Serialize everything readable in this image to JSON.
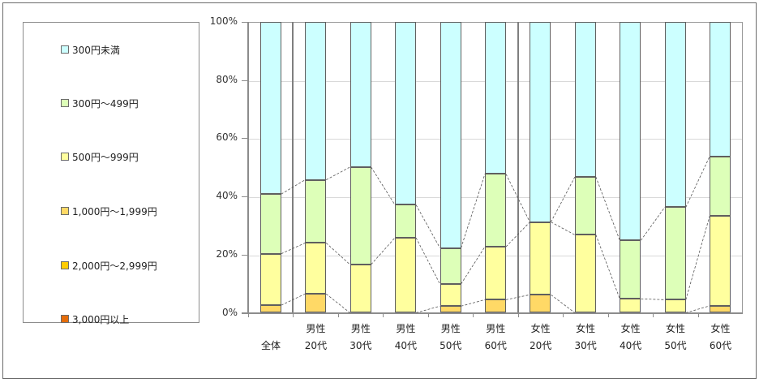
{
  "legend": {
    "items": [
      {
        "label": "300円未満",
        "color": "#CCFFFF"
      },
      {
        "label": "300円～499円",
        "color": "#DDFFB8"
      },
      {
        "label": "500円～999円",
        "color": "#FFFF9E"
      },
      {
        "label": "1,000円～1,999円",
        "color": "#FFD966"
      },
      {
        "label": "2,000円～2,999円",
        "color": "#FFCC00"
      },
      {
        "label": "3,000円以上",
        "color": "#E46C0A"
      }
    ]
  },
  "y_axis": {
    "ticks": [
      "100%",
      "80%",
      "60%",
      "40%",
      "20%",
      "0%"
    ]
  },
  "x_axis": {
    "categories": [
      {
        "line1": "",
        "line2": "全体"
      },
      {
        "line1": "男性",
        "line2": "20代"
      },
      {
        "line1": "男性",
        "line2": "30代"
      },
      {
        "line1": "男性",
        "line2": "40代"
      },
      {
        "line1": "男性",
        "line2": "50代"
      },
      {
        "line1": "男性",
        "line2": "60代"
      },
      {
        "line1": "女性",
        "line2": "20代"
      },
      {
        "line1": "女性",
        "line2": "30代"
      },
      {
        "line1": "女性",
        "line2": "40代"
      },
      {
        "line1": "女性",
        "line2": "50代"
      },
      {
        "line1": "女性",
        "line2": "60代"
      }
    ]
  },
  "chart_data": {
    "type": "bar",
    "stacked": "percent",
    "title": "",
    "xlabel": "",
    "ylabel": "",
    "ylim": [
      0,
      100
    ],
    "y_ticks": [
      "0%",
      "20%",
      "40%",
      "60%",
      "80%",
      "100%"
    ],
    "grid": true,
    "legend_position": "left",
    "series_lines": true,
    "group_dividers_after": [
      "全体",
      "男性60代"
    ],
    "categories": [
      "全体",
      "男性20代",
      "男性30代",
      "男性40代",
      "男性50代",
      "男性60代",
      "女性20代",
      "女性30代",
      "女性40代",
      "女性50代",
      "女性60代"
    ],
    "series": [
      {
        "name": "3,000円以上",
        "color": "#E46C0A",
        "values": [
          0,
          0,
          0,
          0,
          0,
          0,
          0,
          0,
          0,
          0,
          0
        ]
      },
      {
        "name": "2,000円～2,999円",
        "color": "#FFCC00",
        "values": [
          0,
          0,
          0,
          0,
          0,
          0,
          0,
          0,
          0,
          0,
          0
        ]
      },
      {
        "name": "1,000円～1,999円",
        "color": "#FFD966",
        "values": [
          2.6,
          6.5,
          0,
          0,
          2.3,
          4.5,
          6.2,
          0,
          0,
          0,
          2.4
        ]
      },
      {
        "name": "500円～999円",
        "color": "#FFFF9E",
        "values": [
          17.7,
          17.5,
          16.6,
          25.8,
          7.6,
          18.2,
          25.0,
          26.8,
          4.8,
          4.5,
          30.9
        ]
      },
      {
        "name": "300円～499円",
        "color": "#DDFFB8",
        "values": [
          20.5,
          21.7,
          33.5,
          11.3,
          12.4,
          25.0,
          0,
          19.9,
          20.1,
          31.8,
          20.5
        ]
      },
      {
        "name": "300円未満",
        "color": "#CCFFFF",
        "values": [
          59.2,
          54.3,
          49.9,
          62.9,
          77.7,
          52.3,
          68.8,
          53.3,
          75.1,
          63.7,
          46.2
        ]
      }
    ]
  }
}
